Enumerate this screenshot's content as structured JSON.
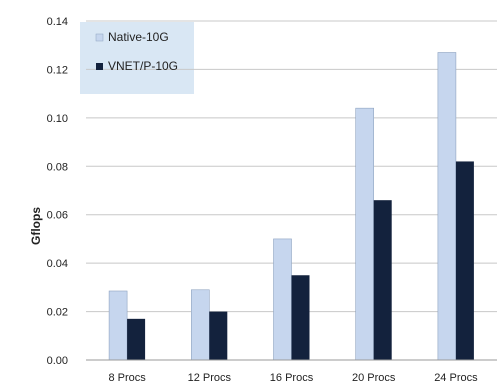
{
  "chart_data": {
    "type": "bar",
    "categories": [
      "8 Procs",
      "12 Procs",
      "16 Procs",
      "20 Procs",
      "24 Procs"
    ],
    "series": [
      {
        "name": "Native-10G",
        "color": "#c6d6ee",
        "values": [
          0.0285,
          0.029,
          0.05,
          0.104,
          0.127
        ]
      },
      {
        "name": "VNET/P-10G",
        "color": "#13223d",
        "values": [
          0.017,
          0.02,
          0.035,
          0.066,
          0.082
        ]
      }
    ],
    "ylabel": "Gflops",
    "xlabel": "",
    "title": "",
    "ylim": [
      0,
      0.14
    ],
    "yticks": [
      "0.00",
      "0.02",
      "0.04",
      "0.06",
      "0.08",
      "0.10",
      "0.12",
      "0.14"
    ],
    "grid": true,
    "legend_position": "top-left"
  }
}
